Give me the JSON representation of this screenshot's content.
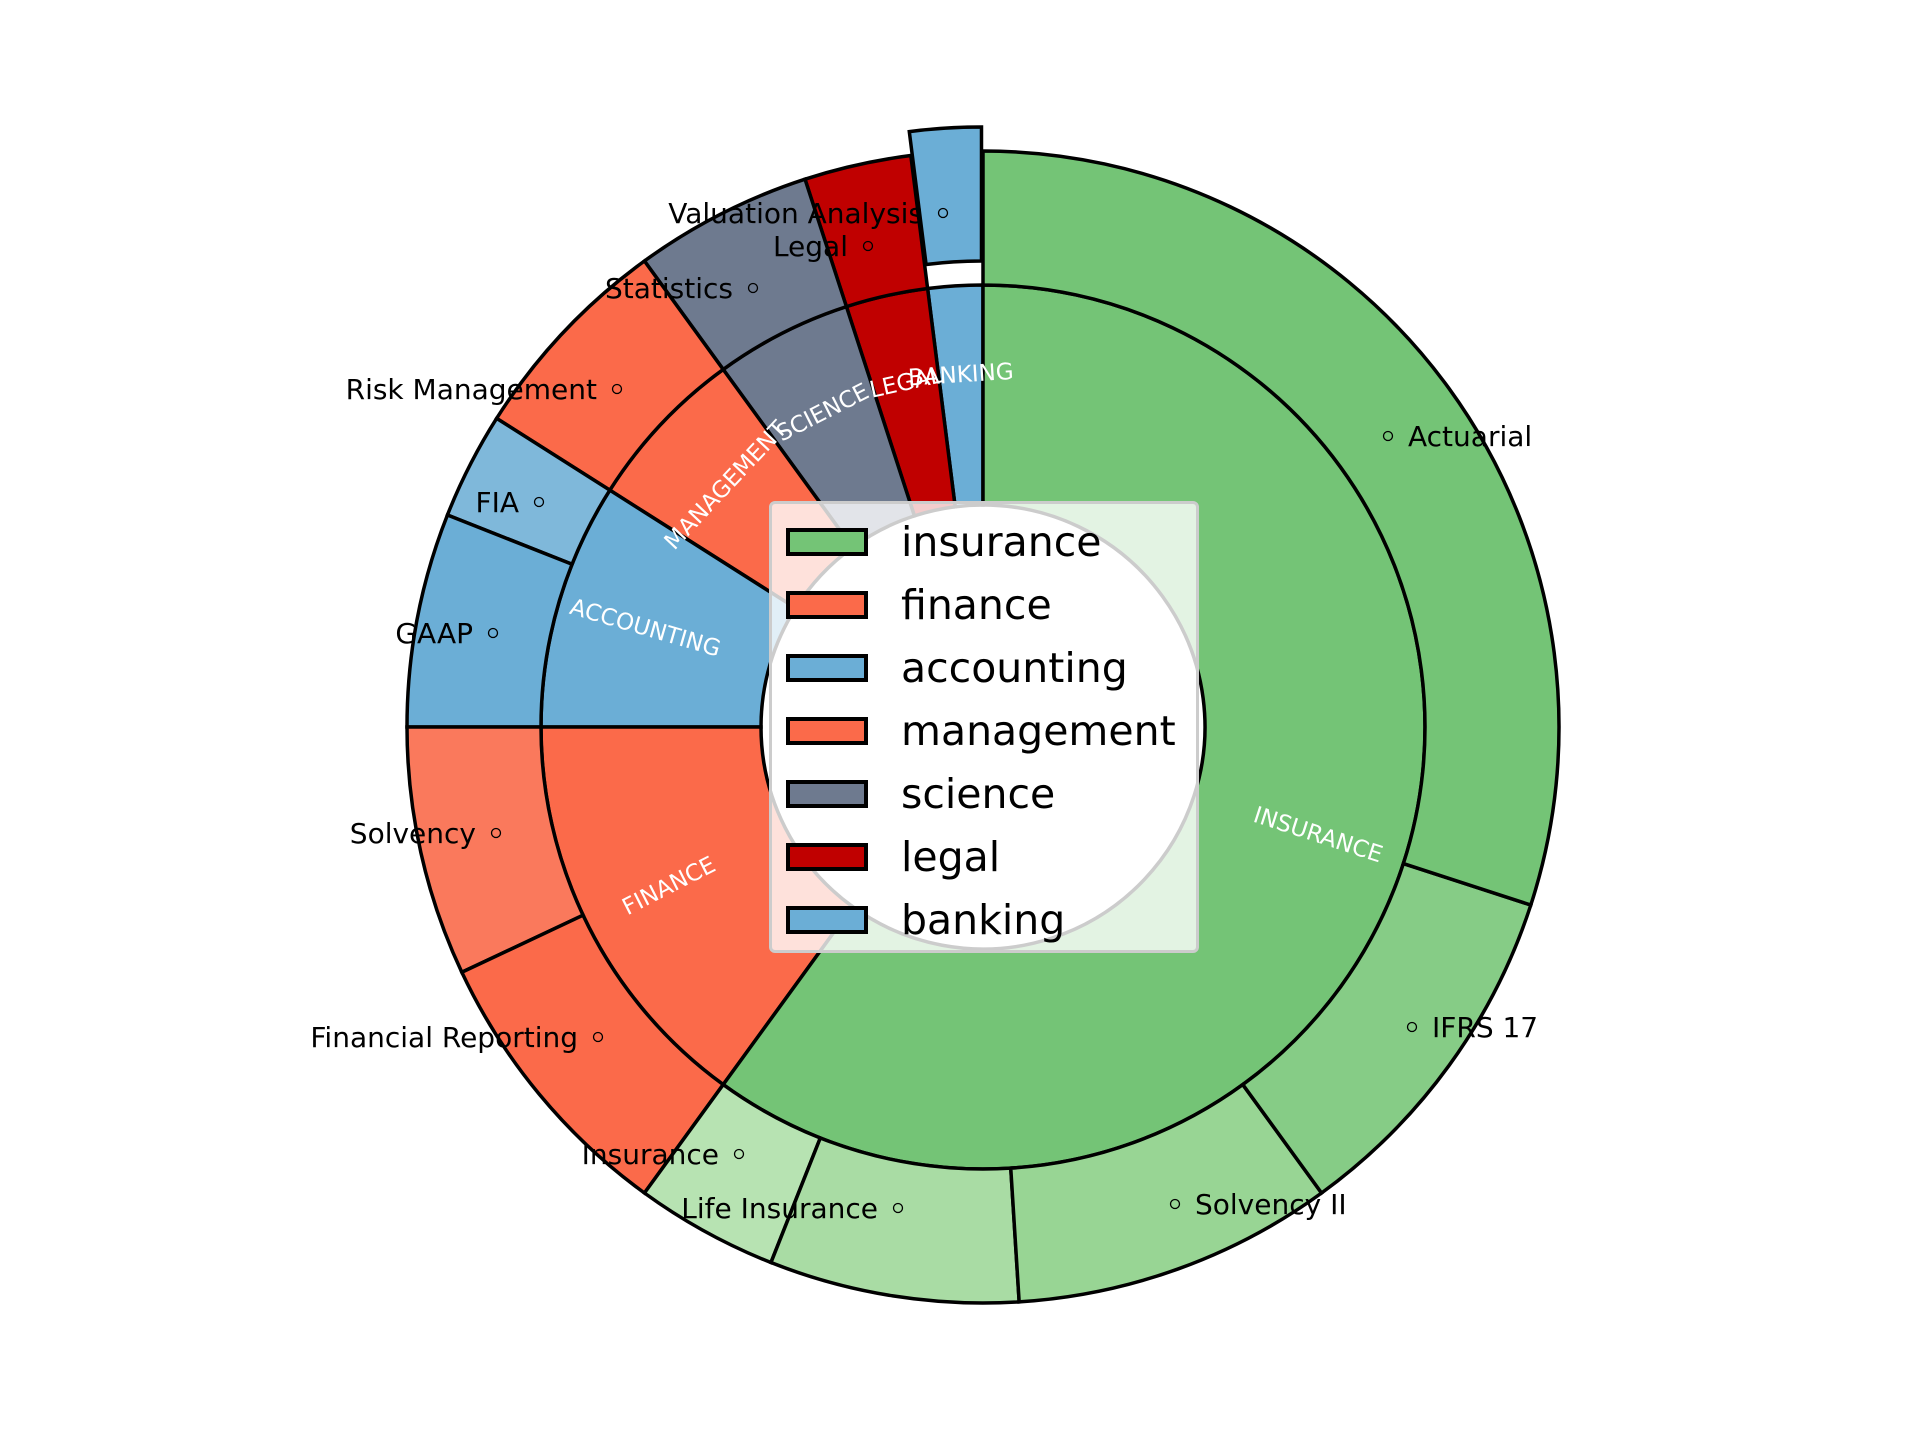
{
  "chart_data": {
    "type": "sunburst",
    "title": "",
    "start_angle_deg": 90,
    "direction": "counterclockwise",
    "unit": "percent",
    "center": [
      983,
      727
    ],
    "radii": {
      "inner_hole": 222,
      "middle": 442,
      "outer": 576
    },
    "categories": [
      {
        "name": "insurance",
        "label": "INSURANCE",
        "value": 60,
        "color": "#74c476",
        "children": [
          {
            "name": "Actuarial",
            "value": 30,
            "color": "#74c476"
          },
          {
            "name": "IFRS 17",
            "value": 10,
            "color": "#86cc86"
          },
          {
            "name": "Solvency II",
            "value": 9,
            "color": "#98d594"
          },
          {
            "name": "Life Insurance",
            "value": 7,
            "color": "#a9dca4"
          },
          {
            "name": "Insurance",
            "value": 4,
            "color": "#b7e3b2"
          }
        ]
      },
      {
        "name": "finance",
        "label": "FINANCE",
        "value": 15,
        "color": "#fb6a4a",
        "children": [
          {
            "name": "Financial Reporting",
            "value": 8,
            "color": "#fb6a4a"
          },
          {
            "name": "Solvency",
            "value": 7,
            "color": "#fa795c"
          }
        ]
      },
      {
        "name": "accounting",
        "label": "ACCOUNTING",
        "value": 9,
        "color": "#6baed6",
        "children": [
          {
            "name": "GAAP",
            "value": 6,
            "color": "#6baed6"
          },
          {
            "name": "FIA",
            "value": 3,
            "color": "#7fb8da"
          }
        ]
      },
      {
        "name": "management",
        "label": "MANAGEMENT",
        "value": 6,
        "color": "#fb6a4a",
        "children": [
          {
            "name": "Risk Management",
            "value": 6,
            "color": "#fb6a4a"
          }
        ]
      },
      {
        "name": "science",
        "label": "SCIENCE",
        "value": 5,
        "color": "#6e7a8f",
        "children": [
          {
            "name": "Statistics",
            "value": 5,
            "color": "#6e7a8f"
          }
        ]
      },
      {
        "name": "legal",
        "label": "LEGAL",
        "value": 3,
        "color": "#c00000",
        "children": [
          {
            "name": "Legal",
            "value": 3,
            "color": "#c00000"
          }
        ]
      },
      {
        "name": "banking",
        "label": "BANKING",
        "value": 2,
        "color": "#6baed6",
        "explode": 24,
        "children": [
          {
            "name": "Valuation Analysis",
            "value": 2,
            "color": "#6baed6",
            "explode": 24
          }
        ]
      }
    ],
    "outer_labels": [
      {
        "text": "Actuarial",
        "marker": [
          1388,
          436
        ],
        "anchor": "start"
      },
      {
        "text": "IFRS 17",
        "marker": [
          1412,
          1027
        ],
        "anchor": "start"
      },
      {
        "text": "Solvency II",
        "marker": [
          1175,
          1204
        ],
        "anchor": "start"
      },
      {
        "text": "Life Insurance",
        "marker": [
          898,
          1208
        ],
        "anchor": "end"
      },
      {
        "text": "Insurance",
        "marker": [
          739,
          1154
        ],
        "anchor": "end"
      },
      {
        "text": "Financial Reporting",
        "marker": [
          598,
          1037
        ],
        "anchor": "end"
      },
      {
        "text": "Solvency",
        "marker": [
          496,
          833
        ],
        "anchor": "end"
      },
      {
        "text": "GAAP",
        "marker": [
          493,
          633
        ],
        "anchor": "end"
      },
      {
        "text": "FIA",
        "marker": [
          539,
          502
        ],
        "anchor": "end"
      },
      {
        "text": "Risk Management",
        "marker": [
          617,
          389
        ],
        "anchor": "end"
      },
      {
        "text": "Statistics",
        "marker": [
          753,
          288
        ],
        "anchor": "end"
      },
      {
        "text": "Legal",
        "marker": [
          868,
          246
        ],
        "anchor": "end"
      },
      {
        "text": "Valuation Analysis",
        "marker": [
          943,
          213
        ],
        "anchor": "end"
      }
    ],
    "legend": {
      "position": "center",
      "entries": [
        {
          "label": "insurance",
          "color": "#74c476"
        },
        {
          "label": "finance",
          "color": "#fb6a4a"
        },
        {
          "label": "accounting",
          "color": "#6baed6"
        },
        {
          "label": "management",
          "color": "#fb6a4a"
        },
        {
          "label": "science",
          "color": "#6e7a8f"
        },
        {
          "label": "legal",
          "color": "#c00000"
        },
        {
          "label": "banking",
          "color": "#6baed6"
        }
      ]
    }
  }
}
